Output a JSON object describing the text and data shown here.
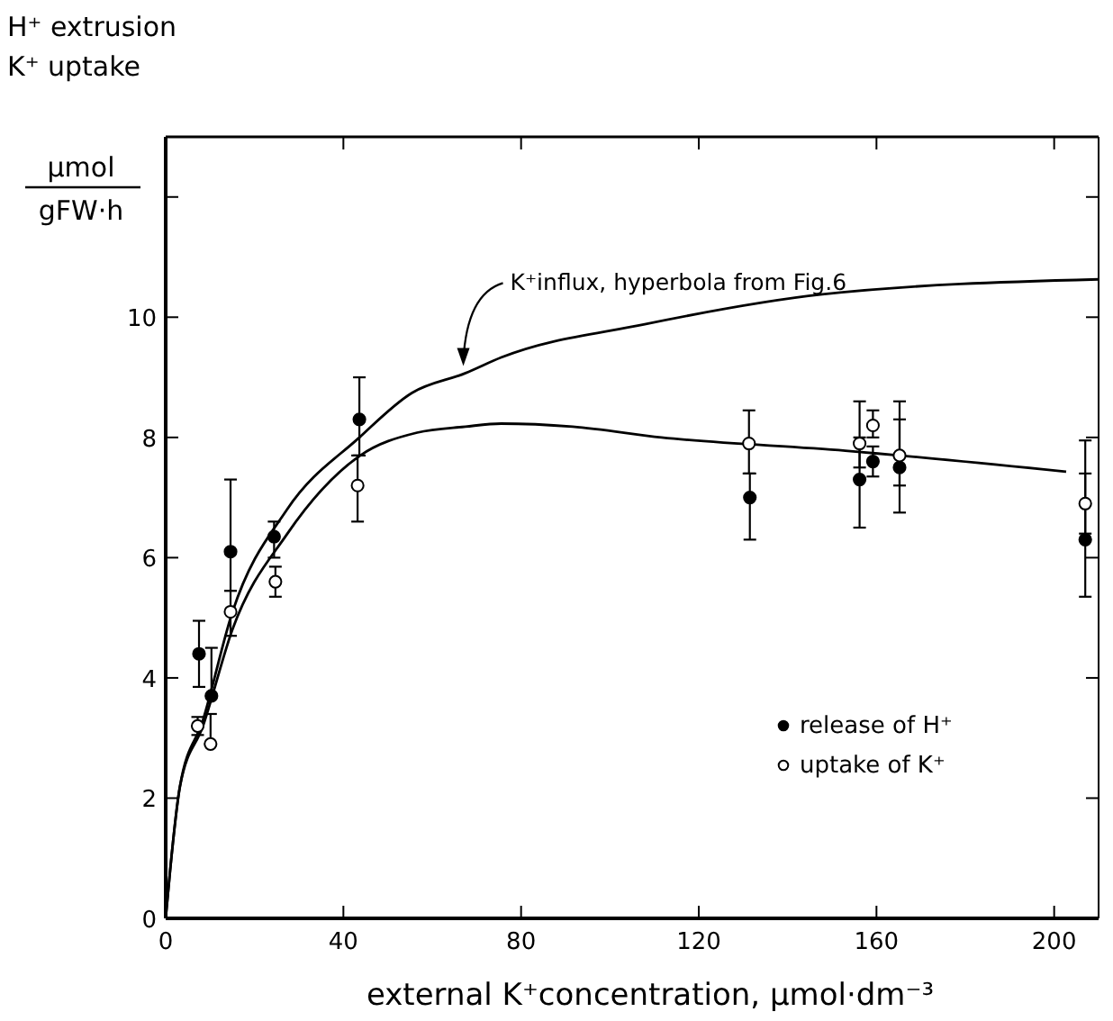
{
  "chart_data": {
    "type": "scatter",
    "xlabel": "external K⁺concentration, μmol·dm⁻³",
    "ylabel": "H⁺ extrusion\nK⁺ uptake\nμmol\ngFW·h",
    "xlim": [
      0,
      210
    ],
    "xticks": [
      0,
      40,
      80,
      120,
      160,
      200
    ],
    "ylim": [
      0,
      13
    ],
    "yticks": [
      0,
      2,
      4,
      6,
      8,
      10,
      {
        "value": 12,
        "label": null
      }
    ],
    "grid": false,
    "legend": "bottom right",
    "marker": "circle",
    "annotations": [
      {
        "text": "K⁺influx, hyperbola from Fig.6",
        "x": 67,
        "y": 9.1
      }
    ],
    "series": [
      {
        "type": "line",
        "color": "#000000",
        "marker": "none",
        "line_style": "solid",
        "x": [
          0,
          1,
          3.2,
          8.4,
          15,
          27.3,
          43.6,
          55.4,
          67.5,
          75.5,
          107.6,
          147.8,
          210
        ],
        "values": [
          0,
          0.8,
          2.19,
          3.3,
          5.09,
          6.8,
          8.0,
          8.74,
          9.07,
          9.33,
          9.88,
          10.38,
          10.63
        ]
      },
      {
        "type": "line",
        "color": "#000000",
        "marker": "none",
        "line_style": "solid",
        "x": [
          0,
          1,
          3.2,
          8.4,
          15,
          27.3,
          43.6,
          56.6,
          67.5,
          75.5,
          91.6,
          111.6,
          153,
          202.7
        ],
        "values": [
          0,
          0.8,
          2.19,
          3.2,
          4.8,
          6.39,
          7.69,
          8.08,
          8.18,
          8.23,
          8.18,
          8.0,
          7.78,
          7.43
        ]
      },
      {
        "name": "release of H⁺",
        "color": "#000000",
        "x": [
          7.5,
          10.3,
          14.6,
          24.4,
          43.6,
          131.5,
          156.2,
          159.2,
          165.2,
          207
        ],
        "values": [
          4.4,
          3.7,
          6.1,
          6.35,
          8.3,
          7.0,
          7.3,
          7.6,
          7.5,
          6.3
        ],
        "errors": [
          [
            3.85,
            4.95
          ],
          [
            3.7,
            4.5
          ],
          [
            5.45,
            7.3
          ],
          [
            6.0,
            6.6
          ],
          [
            7.7,
            9.0
          ],
          [
            6.3,
            7.4
          ],
          [
            6.5,
            8.0
          ],
          [
            7.35,
            7.85
          ],
          [
            6.75,
            8.3
          ],
          [
            5.35,
            7.4
          ]
        ]
      },
      {
        "name": "uptake of K⁺",
        "color": "#ffffff",
        "x": [
          7.2,
          10.1,
          14.6,
          24.7,
          43.2,
          131.3,
          156.2,
          159.2,
          165.2,
          207
        ],
        "values": [
          3.2,
          2.9,
          5.1,
          5.6,
          7.2,
          7.9,
          7.9,
          8.2,
          7.7,
          6.9
        ],
        "errors": [
          [
            3.05,
            3.35
          ],
          [
            2.9,
            3.4
          ],
          [
            4.7,
            5.45
          ],
          [
            5.35,
            5.85
          ],
          [
            6.6,
            7.7
          ],
          [
            7.4,
            8.45
          ],
          [
            7.5,
            8.6
          ],
          [
            8.0,
            8.45
          ],
          [
            7.2,
            8.6
          ],
          [
            6.4,
            7.95
          ]
        ]
      }
    ]
  }
}
